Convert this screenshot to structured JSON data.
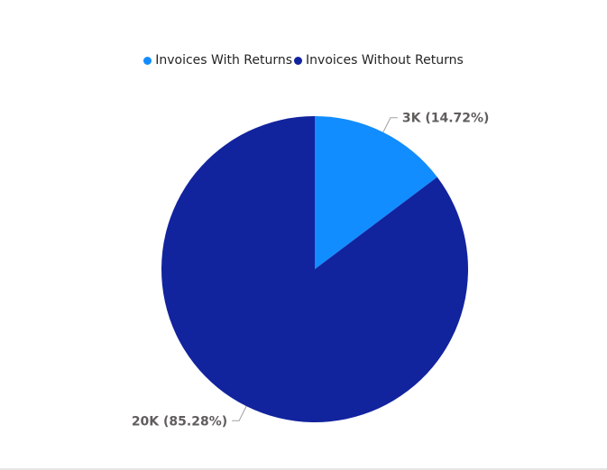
{
  "chart_data": {
    "type": "pie",
    "series": [
      {
        "name": "Invoices With Returns",
        "label": "3K (14.72%)",
        "percent": 14.72,
        "color": "#118DFF"
      },
      {
        "name": "Invoices Without Returns",
        "label": "20K (85.28%)",
        "percent": 85.28,
        "color": "#12239E"
      }
    ],
    "legend_position": "top-center",
    "start_angle": "12 o'clock, clockwise"
  }
}
